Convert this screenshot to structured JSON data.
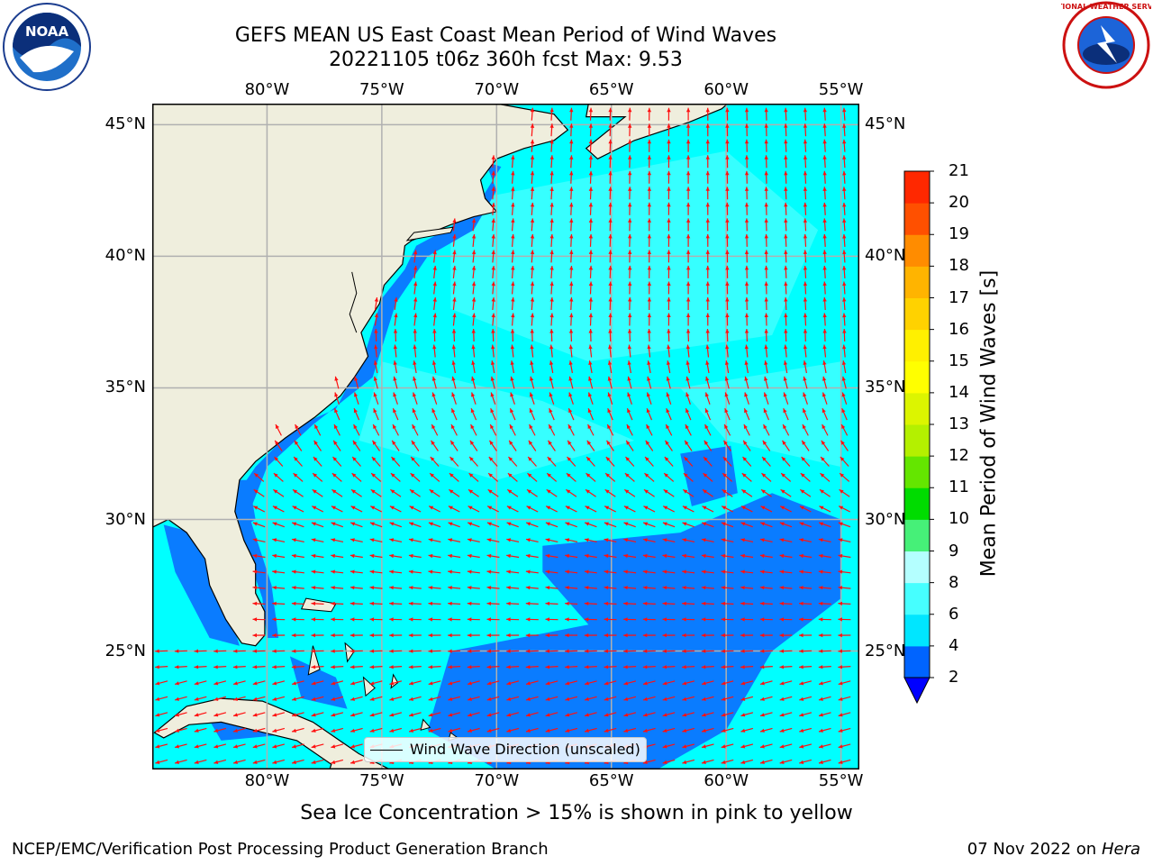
{
  "title": {
    "line1": "GEFS MEAN US East Coast Mean Period of Wind Waves",
    "line2": "20221105 t06z 360h fcst   Max: 9.53"
  },
  "logos": {
    "left": {
      "text": "NOAA",
      "icon": "noaa-logo"
    },
    "right": {
      "text": "NATIONAL WEATHER SERVICE",
      "icon": "nws-logo"
    }
  },
  "map": {
    "extent": {
      "lon_min": -85,
      "lon_max": -54.2,
      "lat_min": 20.5,
      "lat_max": 45.8
    },
    "lon_ticks": [
      {
        "value": -80,
        "label": "80°W"
      },
      {
        "value": -75,
        "label": "75°W"
      },
      {
        "value": -70,
        "label": "70°W"
      },
      {
        "value": -65,
        "label": "65°W"
      },
      {
        "value": -60,
        "label": "60°W"
      },
      {
        "value": -55,
        "label": "55°W"
      }
    ],
    "lat_ticks": [
      {
        "value": 45,
        "label": "45°N"
      },
      {
        "value": 40,
        "label": "40°N"
      },
      {
        "value": 35,
        "label": "35°N"
      },
      {
        "value": 30,
        "label": "30°N"
      },
      {
        "value": 25,
        "label": "25°N"
      }
    ],
    "colors": {
      "land": "#efeedd",
      "coast": "#000000",
      "grid": "#b0b0b0",
      "ocean_4_6": "#00ffff",
      "ocean_6_8": "#3cffff",
      "ocean_2_4": "#0a7cff",
      "arrow": "#ff1010"
    },
    "legend_label": "Wind Wave Direction (unscaled)"
  },
  "colorbar": {
    "title": "Mean Period of Wind Waves [s]",
    "labels": [
      "2",
      "4",
      "6",
      "8",
      "9",
      "10",
      "11",
      "12",
      "13",
      "14",
      "15",
      "16",
      "17",
      "18",
      "19",
      "20",
      "21"
    ],
    "colors": [
      "#0064ff",
      "#00e6ff",
      "#46ffff",
      "#b4ffff",
      "#46f078",
      "#00dc00",
      "#64e600",
      "#b4f000",
      "#dcf500",
      "#ffff00",
      "#fff000",
      "#ffd200",
      "#ffb400",
      "#ff8c00",
      "#ff5000",
      "#ff2800"
    ],
    "underflow_color": "#0000ff"
  },
  "notes": {
    "ice": "Sea Ice Concentration > 15% is shown in pink to yellow"
  },
  "footer": {
    "left": "NCEP/EMC/Verification Post Processing Product Generation Branch",
    "date": "07 Nov 2022 on",
    "machine": "Hera"
  }
}
